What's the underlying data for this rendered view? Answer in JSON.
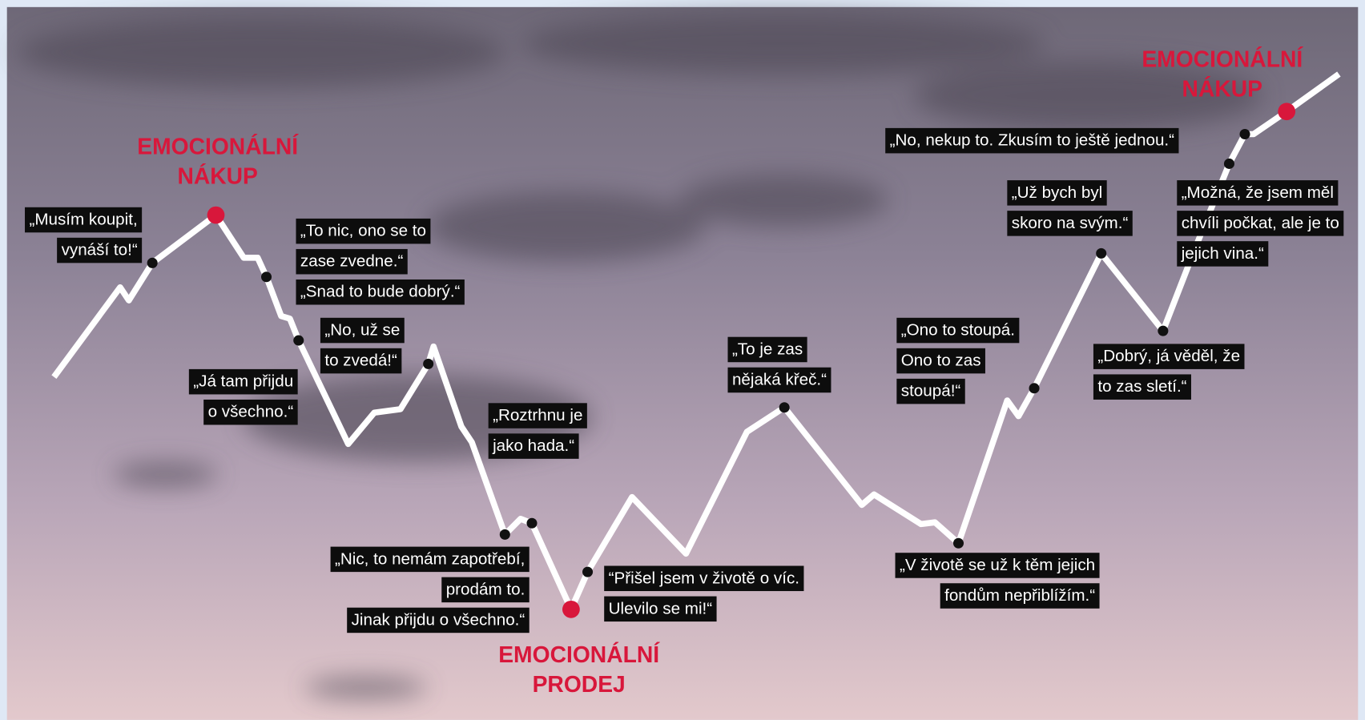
{
  "markers": [
    {
      "lines": [
        "EMOCIONÁLNÍ",
        "NÁKUP"
      ]
    },
    {
      "lines": [
        "EMOCIONÁLNÍ",
        "PRODEJ"
      ]
    },
    {
      "lines": [
        "EMOCIONÁLNÍ",
        "NÁKUP"
      ]
    }
  ],
  "quotes": [
    {
      "lines": [
        "„Musím koupit,",
        "vynáší to!“"
      ]
    },
    {
      "lines": [
        "„To nic, ono se to",
        "zase zvedne.“",
        "„Snad to bude dobrý.“"
      ]
    },
    {
      "lines": [
        "„No, už se",
        "to zvedá!“"
      ]
    },
    {
      "lines": [
        "„Já tam přijdu",
        "o všechno.“"
      ]
    },
    {
      "lines": [
        "„Roztrhnu je",
        "jako hada.“"
      ]
    },
    {
      "lines": [
        "„Nic, to nemám zapotřebí,",
        "prodám to.",
        "Jinak přijdu o všechno.“"
      ]
    },
    {
      "lines": [
        "“Přišel jsem v životě o víc.",
        "Ulevilo se mi!“"
      ]
    },
    {
      "lines": [
        "„To je zas",
        "nějaká křeč.“"
      ]
    },
    {
      "lines": [
        "„Ono to stoupá.",
        "Ono to zas",
        "stoupá!“"
      ]
    },
    {
      "lines": [
        "„V životě se už k těm jejich",
        "fondům nepřiblížím.“"
      ]
    },
    {
      "lines": [
        "„Už bych byl",
        "skoro na svým.“"
      ]
    },
    {
      "lines": [
        "„No, nekup to. Zkusím to ještě jednou.“"
      ]
    },
    {
      "lines": [
        "„Dobrý, já věděl, že",
        "to zas sletí.“"
      ]
    },
    {
      "lines": [
        "„Možná, že jsem měl",
        "chvíli počkat, ale je to",
        "jejich vina.“"
      ]
    }
  ]
}
